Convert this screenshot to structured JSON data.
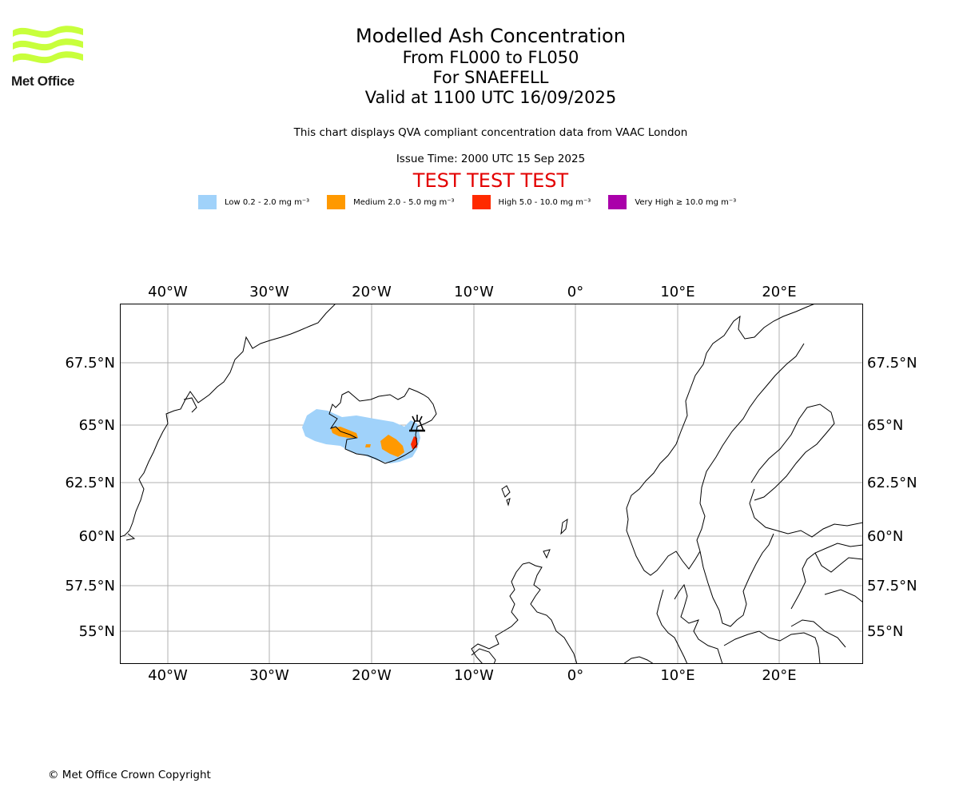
{
  "header": {
    "title": "Modelled Ash Concentration",
    "levels": "From FL000 to FL050",
    "volcano": "For SNAEFELL",
    "valid": "Valid at 1100 UTC 16/09/2025",
    "compliance_note": "This chart displays QVA compliant concentration data from VAAC London",
    "issue_time": "Issue Time: 2000 UTC 15 Sep 2025",
    "test_banner": "TEST TEST TEST"
  },
  "logo": {
    "text": "Met Office",
    "color": "#c8ff3c"
  },
  "legend": [
    {
      "label": "Low 0.2 - 2.0 mg m⁻³",
      "color": "#a0d2fa"
    },
    {
      "label": "Medium 2.0 - 5.0 mg m⁻³",
      "color": "#ff9900"
    },
    {
      "label": "High 5.0 - 10.0 mg m⁻³",
      "color": "#ff2a00"
    },
    {
      "label": "Very High ≥ 10.0 mg m⁻³",
      "color": "#aa00aa"
    }
  ],
  "map": {
    "extent": {
      "lon_min": -44.7,
      "lon_max": 28.2,
      "lat_min": 53.6,
      "lat_max": 70.2
    },
    "lon_ticks": [
      "40°W",
      "30°W",
      "20°W",
      "10°W",
      "0°",
      "10°E",
      "20°E"
    ],
    "lat_ticks": [
      "67.5°N",
      "65°N",
      "62.5°N",
      "60°N",
      "57.5°N",
      "55°N"
    ],
    "volcano_marker": "volcano-icon"
  },
  "footer": {
    "copyright": "© Met Office Crown Copyright"
  }
}
